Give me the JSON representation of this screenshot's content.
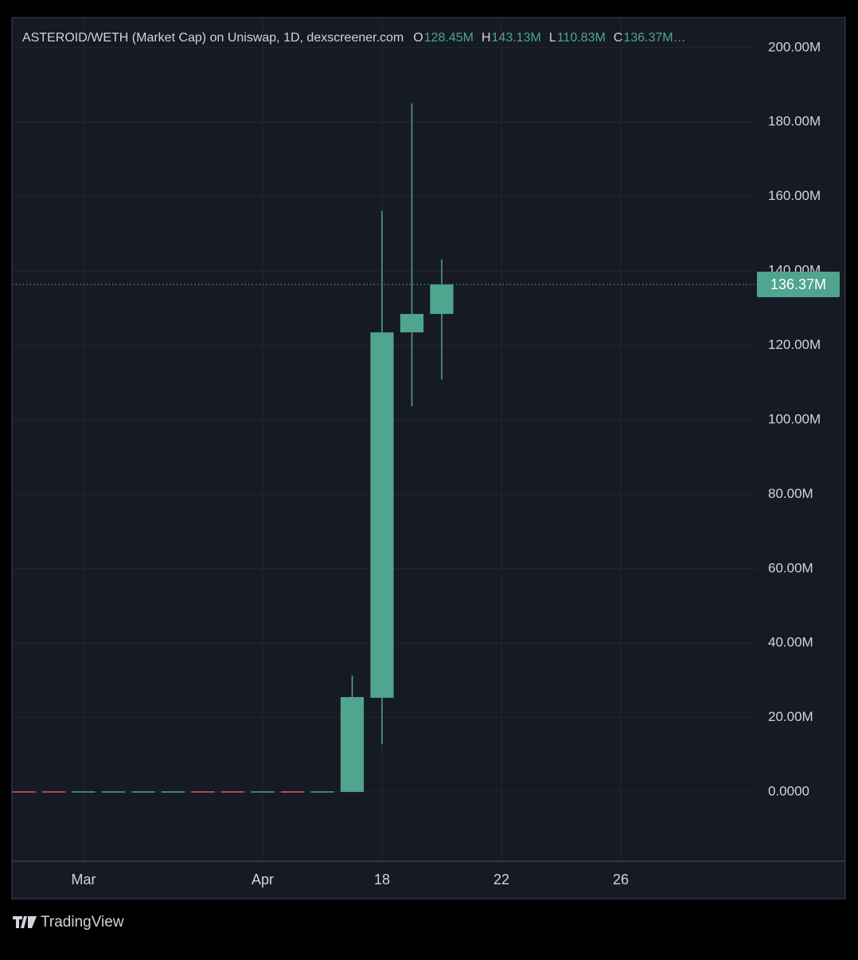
{
  "chart_data": {
    "type": "candlestick",
    "title": "ASTEROID/WETH (Market Cap) on Uniswap, 1D, dexscreener.com",
    "ohlc_legend": [
      {
        "key": "O",
        "label": "128.45M"
      },
      {
        "key": "H",
        "label": "143.13M"
      },
      {
        "key": "L",
        "label": "110.83M"
      },
      {
        "key": "C",
        "label": "136.37M…"
      }
    ],
    "categories": [
      null,
      null,
      "Mar",
      null,
      null,
      null,
      null,
      null,
      "Apr",
      null,
      null,
      null,
      "18",
      null,
      null,
      null,
      "22",
      null,
      null,
      null,
      "26"
    ],
    "open": [
      0,
      0,
      0,
      0,
      0,
      0,
      0,
      0,
      0,
      0,
      0,
      0,
      25.3,
      123.5,
      128.45,
      null,
      null,
      null,
      null,
      null,
      null
    ],
    "high": [
      0,
      0,
      0,
      0,
      0,
      0,
      0,
      0,
      0,
      0,
      0,
      31.3,
      156.1,
      185,
      143.13,
      null,
      null,
      null,
      null,
      null,
      null
    ],
    "low": [
      0,
      0,
      0,
      0,
      0,
      0,
      0,
      0,
      0,
      0,
      0,
      0,
      12.8,
      103.6,
      110.83,
      null,
      null,
      null,
      null,
      null,
      null
    ],
    "close": [
      0,
      0,
      0,
      0,
      0,
      0,
      0,
      0,
      0,
      0,
      0,
      25.5,
      123.5,
      128.45,
      136.37,
      null,
      null,
      null,
      null,
      null,
      null
    ],
    "colors": [
      "#e0566a",
      "#e0566a",
      "#4fa58e",
      "#4fa58e",
      "#4fa58e",
      "#4fa58e",
      "#e0566a",
      "#e0566a",
      "#4fa58e",
      "#e0566a",
      "#4fa58e",
      "#4fa58e",
      "#4fa58e",
      "#4fa58e",
      "#4fa58e",
      null,
      null,
      null,
      null,
      null,
      null
    ],
    "ylim": [
      -18.4,
      208.1
    ],
    "yticks": [
      {
        "value": 0,
        "label": "0.0000"
      },
      {
        "value": 20,
        "label": "20.00M"
      },
      {
        "value": 40,
        "label": "40.00M"
      },
      {
        "value": 60,
        "label": "60.00M"
      },
      {
        "value": 80,
        "label": "80.00M"
      },
      {
        "value": 100,
        "label": "100.00M"
      },
      {
        "value": 120,
        "label": "120.00M"
      },
      {
        "value": 140,
        "label": "140.00M"
      },
      {
        "value": 160,
        "label": "160.00M"
      },
      {
        "value": 180,
        "label": "180.00M"
      },
      {
        "value": 200,
        "label": "200.00M"
      }
    ],
    "last_price": {
      "value": 136.37,
      "label": "136.37M",
      "color": "#4fa58e"
    },
    "grid": true,
    "footer": "TradingView"
  }
}
